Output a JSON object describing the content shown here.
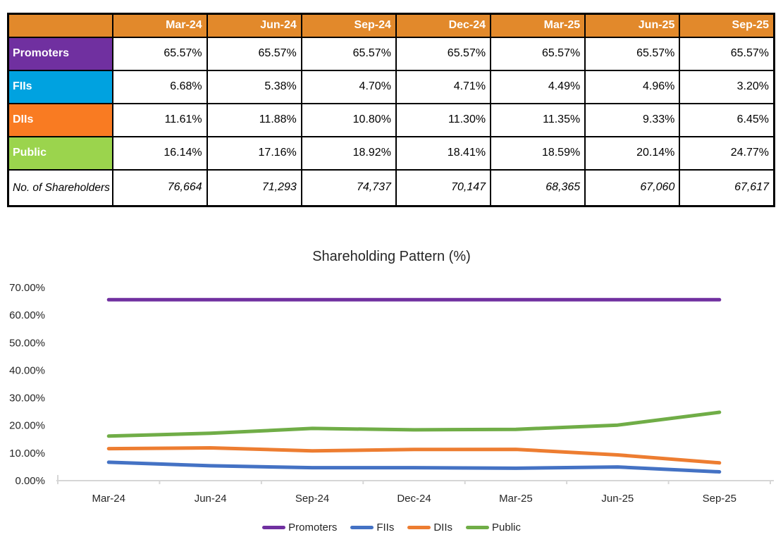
{
  "table": {
    "corner_label": "",
    "header_bg": "#E2892B",
    "columns": [
      "Mar-24",
      "Jun-24",
      "Sep-24",
      "Dec-24",
      "Mar-25",
      "Jun-25",
      "Sep-25"
    ],
    "rows": [
      {
        "label": "Promoters",
        "color": "#7030A0",
        "values": [
          "65.57%",
          "65.57%",
          "65.57%",
          "65.57%",
          "65.57%",
          "65.57%",
          "65.57%"
        ]
      },
      {
        "label": "FIIs",
        "color": "#00A2E0",
        "values": [
          "6.68%",
          "5.38%",
          "4.70%",
          "4.71%",
          "4.49%",
          "4.96%",
          "3.20%"
        ]
      },
      {
        "label": "DIIs",
        "color": "#F97B22",
        "values": [
          "11.61%",
          "11.88%",
          "10.80%",
          "11.30%",
          "11.35%",
          "9.33%",
          "6.45%"
        ]
      },
      {
        "label": "Public",
        "color": "#9BD44D",
        "values": [
          "16.14%",
          "17.16%",
          "18.92%",
          "18.41%",
          "18.59%",
          "20.14%",
          "24.77%"
        ]
      }
    ],
    "footer_row": {
      "label": "No. of Shareholders",
      "values": [
        "76,664",
        "71,293",
        "74,737",
        "70,147",
        "68,365",
        "67,060",
        "67,617"
      ]
    }
  },
  "chart_data": {
    "type": "line",
    "title": "Shareholding Pattern (%)",
    "categories": [
      "Mar-24",
      "Jun-24",
      "Sep-24",
      "Dec-24",
      "Mar-25",
      "Jun-25",
      "Sep-25"
    ],
    "series": [
      {
        "name": "Promoters",
        "color": "#7030A0",
        "values": [
          65.57,
          65.57,
          65.57,
          65.57,
          65.57,
          65.57,
          65.57
        ]
      },
      {
        "name": "FIIs",
        "color": "#4472C4",
        "values": [
          6.68,
          5.38,
          4.7,
          4.71,
          4.49,
          4.96,
          3.2
        ]
      },
      {
        "name": "DIIs",
        "color": "#ED7D31",
        "values": [
          11.61,
          11.88,
          10.8,
          11.3,
          11.35,
          9.33,
          6.45
        ]
      },
      {
        "name": "Public",
        "color": "#70AD47",
        "values": [
          16.14,
          17.16,
          18.92,
          18.41,
          18.59,
          20.14,
          24.77
        ]
      }
    ],
    "xlabel": "",
    "ylabel": "",
    "ylim": [
      0,
      70
    ],
    "ytick_step": 10,
    "ytick_labels": [
      "0.00%",
      "10.00%",
      "20.00%",
      "30.00%",
      "40.00%",
      "50.00%",
      "60.00%",
      "70.00%"
    ],
    "grid": false,
    "axis_color": "#D6D6D6",
    "legend_position": "bottom"
  }
}
